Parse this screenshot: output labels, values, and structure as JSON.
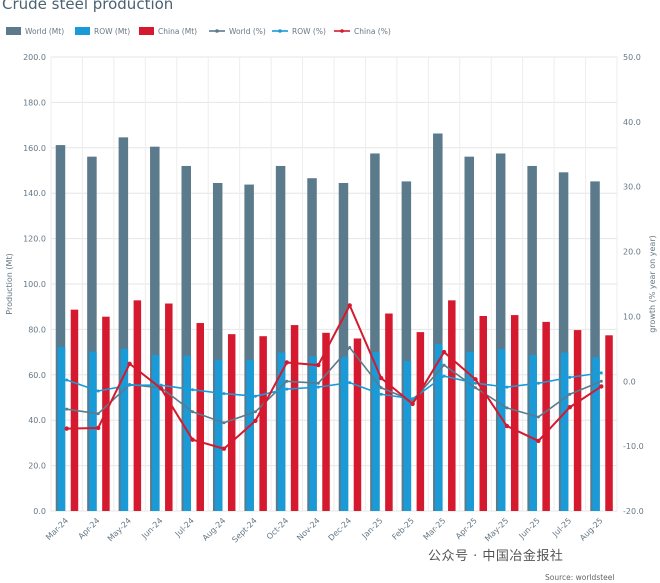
{
  "chart_data": {
    "type": "bar",
    "title": "Crude steel production",
    "categories": [
      "Mar-24",
      "Apr-24",
      "May-24",
      "Jun-24",
      "Jul-24",
      "Aug-24",
      "Sept-24",
      "Oct-24",
      "Nov-24",
      "Dec-24",
      "Jan-25",
      "Feb-25",
      "Mar-25",
      "Apr-25",
      "May-25",
      "Jun-25",
      "Jul-25",
      "Aug-25"
    ],
    "ylabel": "Production (Mt)",
    "y2label": "growth (% year on year)",
    "ylim": [
      0,
      200
    ],
    "y2lim": [
      -20,
      50
    ],
    "yticks": [
      "0.0",
      "20.0",
      "40.0",
      "60.0",
      "80.0",
      "100.0",
      "120.0",
      "140.0",
      "160.0",
      "180.0",
      "200.0"
    ],
    "y2ticks": [
      "-20.0",
      "-10.0",
      "0.0",
      "10.0",
      "20.0",
      "30.0",
      "40.0",
      "50.0"
    ],
    "grid": true,
    "legend_position": "top-left",
    "bar_series": [
      {
        "name": "World (Mt)",
        "color": "#5b7a8c",
        "values": [
          161.2,
          156.1,
          164.6,
          160.5,
          152.0,
          144.5,
          143.8,
          152.0,
          146.6,
          144.5,
          157.5,
          145.2,
          166.3,
          156.1,
          157.5,
          152.0,
          149.2,
          145.2
        ]
      },
      {
        "name": "ROW (Mt)",
        "color": "#1a9ad6",
        "values": [
          72.3,
          70.2,
          71.5,
          68.8,
          68.4,
          66.6,
          66.6,
          69.8,
          68.1,
          68.1,
          70.0,
          66.1,
          73.6,
          70.2,
          71.3,
          68.8,
          69.8,
          67.8
        ]
      },
      {
        "name": "China (Mt)",
        "color": "#d5192e",
        "values": [
          88.7,
          85.6,
          92.8,
          91.4,
          82.8,
          77.9,
          77.0,
          81.9,
          78.5,
          76.0,
          87.0,
          78.8,
          92.8,
          85.9,
          86.3,
          83.3,
          79.7,
          77.4
        ]
      }
    ],
    "line_series": [
      {
        "name": "World (%)",
        "color": "#5b7a8c",
        "values": [
          -4.3,
          -5.0,
          -0.5,
          -1.0,
          -4.7,
          -6.4,
          -4.7,
          0.0,
          -0.3,
          5.2,
          -1.0,
          -3.0,
          2.5,
          -1.0,
          -4.1,
          -5.5,
          -2.0,
          0.0
        ]
      },
      {
        "name": "ROW (%)",
        "color": "#1a9ad6",
        "values": [
          0.2,
          -1.5,
          -0.6,
          -0.6,
          -1.3,
          -1.9,
          -2.3,
          -1.2,
          -0.9,
          -0.2,
          -2.0,
          -2.7,
          0.8,
          -0.3,
          -0.9,
          -0.3,
          0.6,
          1.3
        ]
      },
      {
        "name": "China (%)",
        "color": "#d5192e",
        "values": [
          -7.3,
          -7.2,
          2.7,
          -1.1,
          -9.0,
          -10.4,
          -6.1,
          2.9,
          2.5,
          11.7,
          0.5,
          -3.5,
          4.5,
          0.3,
          -6.9,
          -9.2,
          -4.0,
          -0.8
        ]
      }
    ]
  },
  "watermark": "公众号 · 中国冶金报社",
  "source": "Source: worldsteel"
}
